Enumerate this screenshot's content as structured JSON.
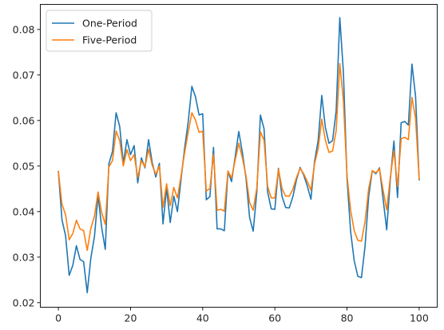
{
  "chart_data": {
    "type": "line",
    "title": "",
    "xlabel": "",
    "ylabel": "",
    "xlim": [
      -5,
      105
    ],
    "ylim": [
      0.019,
      0.0855
    ],
    "x_ticks": [
      0,
      20,
      40,
      60,
      80,
      100
    ],
    "x_tick_labels": [
      "0",
      "20",
      "40",
      "60",
      "80",
      "100"
    ],
    "y_ticks": [
      0.02,
      0.03,
      0.04,
      0.05,
      0.06,
      0.07,
      0.08
    ],
    "y_tick_labels": [
      "0.02",
      "0.03",
      "0.04",
      "0.05",
      "0.06",
      "0.07",
      "0.08"
    ],
    "grid": false,
    "legend_position": "top-left",
    "series": [
      {
        "name": "One-Period",
        "color": "#1f77b4",
        "x": [
          0,
          1,
          2,
          3,
          4,
          5,
          6,
          7,
          8,
          9,
          10,
          11,
          12,
          13,
          14,
          15,
          16,
          17,
          18,
          19,
          20,
          21,
          22,
          23,
          24,
          25,
          26,
          27,
          28,
          29,
          30,
          31,
          32,
          33,
          34,
          35,
          36,
          37,
          38,
          39,
          40,
          41,
          42,
          43,
          44,
          45,
          46,
          47,
          48,
          49,
          50,
          51,
          52,
          53,
          54,
          55,
          56,
          57,
          58,
          59,
          60,
          61,
          62,
          63,
          64,
          65,
          66,
          67,
          68,
          69,
          70,
          71,
          72,
          73,
          74,
          75,
          76,
          77,
          78,
          79,
          80,
          81,
          82,
          83,
          84,
          85,
          86,
          87,
          88,
          89,
          90,
          91,
          92,
          93,
          94,
          95,
          96,
          97,
          98,
          99,
          100
        ],
        "values": [
          0.0488,
          0.0382,
          0.0347,
          0.026,
          0.0282,
          0.0325,
          0.0295,
          0.029,
          0.0222,
          0.0298,
          0.0345,
          0.0436,
          0.0365,
          0.0317,
          0.0505,
          0.0532,
          0.0617,
          0.0587,
          0.0506,
          0.0558,
          0.0525,
          0.0545,
          0.0463,
          0.0518,
          0.0496,
          0.0558,
          0.0508,
          0.0476,
          0.0506,
          0.0373,
          0.0452,
          0.0376,
          0.0434,
          0.04,
          0.0471,
          0.054,
          0.0598,
          0.0675,
          0.0652,
          0.0612,
          0.0615,
          0.0426,
          0.0433,
          0.0541,
          0.0362,
          0.0362,
          0.0358,
          0.0488,
          0.0466,
          0.052,
          0.0576,
          0.053,
          0.0474,
          0.0387,
          0.0357,
          0.0443,
          0.0612,
          0.0582,
          0.0443,
          0.0406,
          0.0405,
          0.0495,
          0.0433,
          0.0409,
          0.0408,
          0.0433,
          0.047,
          0.0497,
          0.048,
          0.0456,
          0.0427,
          0.051,
          0.0556,
          0.0655,
          0.0585,
          0.055,
          0.0556,
          0.0622,
          0.0826,
          0.0706,
          0.0473,
          0.0356,
          0.0292,
          0.0258,
          0.0255,
          0.0324,
          0.0433,
          0.049,
          0.0483,
          0.0496,
          0.0428,
          0.036,
          0.047,
          0.0555,
          0.0431,
          0.0595,
          0.0598,
          0.059,
          0.0724,
          0.0653,
          0.047
        ]
      },
      {
        "name": "Five-Period",
        "color": "#ff7f0e",
        "x": [
          0,
          1,
          2,
          3,
          4,
          5,
          6,
          7,
          8,
          9,
          10,
          11,
          12,
          13,
          14,
          15,
          16,
          17,
          18,
          19,
          20,
          21,
          22,
          23,
          24,
          25,
          26,
          27,
          28,
          29,
          30,
          31,
          32,
          33,
          34,
          35,
          36,
          37,
          38,
          39,
          40,
          41,
          42,
          43,
          44,
          45,
          46,
          47,
          48,
          49,
          50,
          51,
          52,
          53,
          54,
          55,
          56,
          57,
          58,
          59,
          60,
          61,
          62,
          63,
          64,
          65,
          66,
          67,
          68,
          69,
          70,
          71,
          72,
          73,
          74,
          75,
          76,
          77,
          78,
          79,
          80,
          81,
          82,
          83,
          84,
          85,
          86,
          87,
          88,
          89,
          90,
          91,
          92,
          93,
          94,
          95,
          96,
          97,
          98,
          99,
          100
        ],
        "values": [
          0.0488,
          0.0416,
          0.0393,
          0.0338,
          0.0352,
          0.0381,
          0.0362,
          0.0358,
          0.0315,
          0.0363,
          0.039,
          0.0443,
          0.0398,
          0.0372,
          0.0498,
          0.0512,
          0.0577,
          0.0556,
          0.05,
          0.0536,
          0.0512,
          0.0525,
          0.0475,
          0.0512,
          0.0498,
          0.0537,
          0.0502,
          0.0482,
          0.05,
          0.041,
          0.0461,
          0.0413,
          0.0453,
          0.043,
          0.0478,
          0.053,
          0.0575,
          0.0617,
          0.0601,
          0.0574,
          0.0577,
          0.0445,
          0.0451,
          0.0526,
          0.0403,
          0.0405,
          0.0401,
          0.0489,
          0.0474,
          0.0513,
          0.055,
          0.0518,
          0.0479,
          0.042,
          0.0403,
          0.0452,
          0.0575,
          0.0557,
          0.0455,
          0.043,
          0.043,
          0.0493,
          0.045,
          0.0434,
          0.0434,
          0.0449,
          0.0475,
          0.0495,
          0.0483,
          0.0466,
          0.0447,
          0.0505,
          0.0538,
          0.0603,
          0.0557,
          0.053,
          0.0533,
          0.0578,
          0.0725,
          0.0643,
          0.0479,
          0.0403,
          0.0358,
          0.0337,
          0.0335,
          0.0378,
          0.045,
          0.049,
          0.0485,
          0.0494,
          0.0447,
          0.0404,
          0.0475,
          0.0534,
          0.0455,
          0.056,
          0.0563,
          0.0558,
          0.0651,
          0.0605,
          0.0472
        ]
      }
    ]
  }
}
